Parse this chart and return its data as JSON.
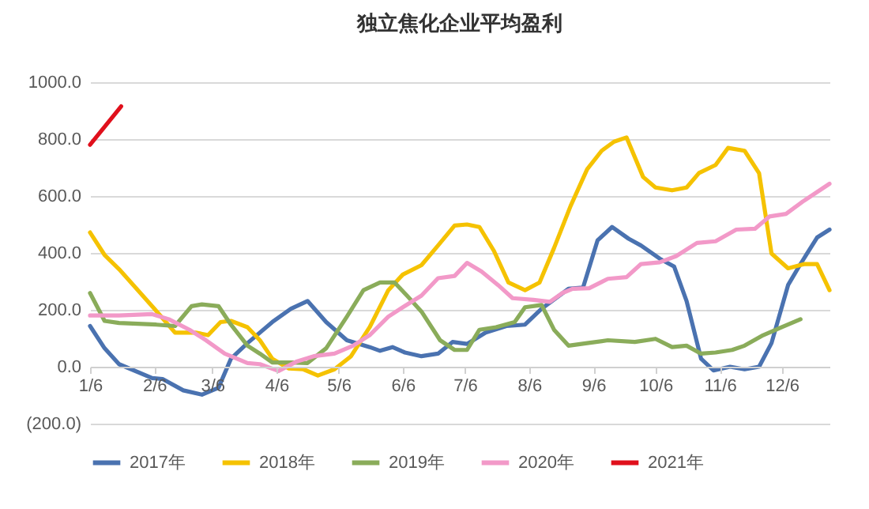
{
  "chart_data": {
    "type": "line",
    "title": "独立焦化企业平均盈利",
    "series": [
      {
        "name": "2017年",
        "color": "#4a72b0",
        "x": [
          "--01-06",
          "--01-13",
          "--01-20",
          "--02-05",
          "--02-10",
          "--02-20",
          "--03-01",
          "--03-09",
          "--03-15",
          "--03-23",
          "--04-04",
          "--04-13",
          "--04-21",
          "--04-30",
          "--05-10",
          "--05-21",
          "--05-26",
          "--06-01",
          "--06-07",
          "--06-15",
          "--06-23",
          "--06-30",
          "--07-07",
          "--07-16",
          "--07-26",
          "--08-04",
          "--08-12",
          "--08-25",
          "--09-01",
          "--09-08",
          "--09-15",
          "--09-23",
          "--09-29",
          "--10-08",
          "--10-15",
          "--10-21",
          "--10-28",
          "--11-03",
          "--11-11",
          "--11-18",
          "--11-25",
          "--12-01",
          "--12-09",
          "--12-15",
          "--12-23",
          "--12-29"
        ],
        "values": [
          143,
          65,
          9,
          -40,
          -43,
          -83,
          -98,
          -74,
          28,
          83,
          157,
          204,
          231,
          157,
          93,
          69,
          56,
          69,
          50,
          37,
          46,
          87,
          80,
          120,
          143,
          148,
          204,
          274,
          278,
          444,
          491,
          450,
          426,
          380,
          352,
          231,
          28,
          -13,
          0,
          -9,
          0,
          83,
          287,
          361,
          454,
          482
        ]
      },
      {
        "name": "2018年",
        "color": "#f5c200",
        "x": [
          "--01-06",
          "--01-13",
          "--01-20",
          "--01-28",
          "--02-06",
          "--02-16",
          "--02-26",
          "--03-04",
          "--03-10",
          "--03-15",
          "--03-23",
          "--03-29",
          "--04-04",
          "--04-12",
          "--04-19",
          "--04-26",
          "--05-04",
          "--05-12",
          "--05-21",
          "--05-30",
          "--06-06",
          "--06-15",
          "--06-23",
          "--07-01",
          "--07-07",
          "--07-13",
          "--07-20",
          "--07-27",
          "--08-04",
          "--08-11",
          "--08-18",
          "--08-26",
          "--09-03",
          "--09-10",
          "--09-16",
          "--09-22",
          "--09-30",
          "--10-06",
          "--10-14",
          "--10-21",
          "--10-27",
          "--11-04",
          "--11-10",
          "--11-18",
          "--11-25",
          "--12-01",
          "--12-09",
          "--12-17",
          "--12-23",
          "--12-29"
        ],
        "values": [
          472,
          393,
          343,
          278,
          204,
          120,
          120,
          111,
          157,
          161,
          139,
          93,
          28,
          -6,
          -9,
          -31,
          -9,
          37,
          139,
          269,
          324,
          357,
          426,
          496,
          500,
          491,
          407,
          296,
          269,
          296,
          417,
          565,
          694,
          759,
          791,
          806,
          667,
          630,
          620,
          630,
          681,
          709,
          769,
          759,
          680,
          398,
          346,
          361,
          361,
          269
        ]
      },
      {
        "name": "2019年",
        "color": "#8aac5a",
        "x": [
          "--01-06",
          "--01-13",
          "--01-20",
          "--02-07",
          "--02-16",
          "--02-24",
          "--03-01",
          "--03-09",
          "--03-15",
          "--03-23",
          "--03-29",
          "--04-04",
          "--04-13",
          "--04-21",
          "--04-30",
          "--05-10",
          "--05-18",
          "--05-26",
          "--06-02",
          "--06-08",
          "--06-15",
          "--06-24",
          "--07-01",
          "--07-07",
          "--07-13",
          "--07-21",
          "--07-30",
          "--08-04",
          "--08-12",
          "--08-18",
          "--08-25",
          "--09-03",
          "--09-13",
          "--09-26",
          "--10-06",
          "--10-14",
          "--10-21",
          "--10-28",
          "--11-04",
          "--11-12",
          "--11-18",
          "--11-27",
          "--12-06",
          "--12-15"
        ],
        "values": [
          259,
          161,
          154,
          148,
          143,
          213,
          219,
          213,
          148,
          74,
          46,
          15,
          15,
          13,
          65,
          176,
          269,
          296,
          296,
          250,
          194,
          93,
          59,
          59,
          130,
          139,
          157,
          209,
          217,
          130,
          74,
          83,
          93,
          87,
          98,
          69,
          74,
          46,
          50,
          59,
          74,
          111,
          139,
          167
        ]
      },
      {
        "name": "2020年",
        "color": "#f299c8",
        "x": [
          "--01-06",
          "--01-20",
          "--02-05",
          "--02-13",
          "--02-23",
          "--03-03",
          "--03-12",
          "--03-23",
          "--03-29",
          "--04-07",
          "--04-16",
          "--04-24",
          "--05-04",
          "--05-13",
          "--05-21",
          "--05-30",
          "--06-06",
          "--06-15",
          "--06-23",
          "--07-01",
          "--07-07",
          "--07-14",
          "--07-22",
          "--07-29",
          "--08-08",
          "--08-16",
          "--08-22",
          "--08-27",
          "--09-04",
          "--09-13",
          "--09-22",
          "--09-29",
          "--10-08",
          "--10-16",
          "--10-26",
          "--11-04",
          "--11-14",
          "--11-23",
          "--11-30",
          "--12-08",
          "--12-16",
          "--12-29"
        ],
        "values": [
          180,
          180,
          185,
          167,
          130,
          93,
          46,
          13,
          9,
          -15,
          19,
          37,
          46,
          74,
          111,
          176,
          209,
          250,
          311,
          319,
          365,
          335,
          287,
          241,
          235,
          228,
          259,
          274,
          276,
          309,
          315,
          361,
          367,
          389,
          435,
          441,
          482,
          485,
          528,
          537,
          580,
          643
        ]
      },
      {
        "name": "2021年",
        "color": "#e0101c",
        "x": [
          "--01-06",
          "--01-21"
        ],
        "values": [
          780,
          915
        ]
      }
    ],
    "xlim": [
      "--01-06",
      "--12-29"
    ],
    "xticks": [
      {
        "value": "--01-06",
        "label": "1/6"
      },
      {
        "value": "--02-06",
        "label": "2/6"
      },
      {
        "value": "--03-06",
        "label": "3/6"
      },
      {
        "value": "--04-06",
        "label": "4/6"
      },
      {
        "value": "--05-06",
        "label": "5/6"
      },
      {
        "value": "--06-06",
        "label": "6/6"
      },
      {
        "value": "--07-06",
        "label": "7/6"
      },
      {
        "value": "--08-06",
        "label": "8/6"
      },
      {
        "value": "--09-06",
        "label": "9/6"
      },
      {
        "value": "--10-06",
        "label": "10/6"
      },
      {
        "value": "--11-06",
        "label": "11/6"
      },
      {
        "value": "--12-06",
        "label": "12/6"
      }
    ],
    "ylim": [
      -200,
      1000
    ],
    "yticks": [
      {
        "value": -200,
        "label": "(200.0)"
      },
      {
        "value": 0,
        "label": "0.0"
      },
      {
        "value": 200,
        "label": "200.0"
      },
      {
        "value": 400,
        "label": "400.0"
      },
      {
        "value": 600,
        "label": "600.0"
      },
      {
        "value": 800,
        "label": "800.0"
      },
      {
        "value": 1000,
        "label": "1000.0"
      }
    ],
    "grid": "y",
    "legend": "bottom",
    "marker": "none",
    "line_style": "solid"
  }
}
